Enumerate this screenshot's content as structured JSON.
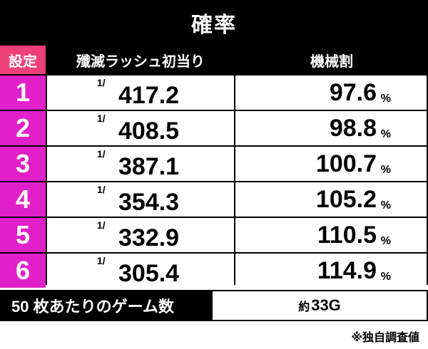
{
  "title": "確率",
  "headers": {
    "setting": "設定",
    "first_hit": "殲滅ラッシュ初当り",
    "payout": "機械割"
  },
  "rows": [
    {
      "setting": "1",
      "prob_num": "1/",
      "prob": "417.2",
      "payout": "97.6",
      "unit": "%"
    },
    {
      "setting": "2",
      "prob_num": "1/",
      "prob": "408.5",
      "payout": "98.8",
      "unit": "%"
    },
    {
      "setting": "3",
      "prob_num": "1/",
      "prob": "387.1",
      "payout": "100.7",
      "unit": "%"
    },
    {
      "setting": "4",
      "prob_num": "1/",
      "prob": "354.3",
      "payout": "105.2",
      "unit": "%"
    },
    {
      "setting": "5",
      "prob_num": "1/",
      "prob": "332.9",
      "payout": "110.5",
      "unit": "%"
    },
    {
      "setting": "6",
      "prob_num": "1/",
      "prob": "305.4",
      "payout": "114.9",
      "unit": "%"
    }
  ],
  "games": {
    "label": "50 枚あたりのゲーム数",
    "approx": "約",
    "value": "33G"
  },
  "note": "※独自調査値",
  "colors": {
    "setting_header": "#f0407a",
    "setting_cell": "#e020c8"
  }
}
